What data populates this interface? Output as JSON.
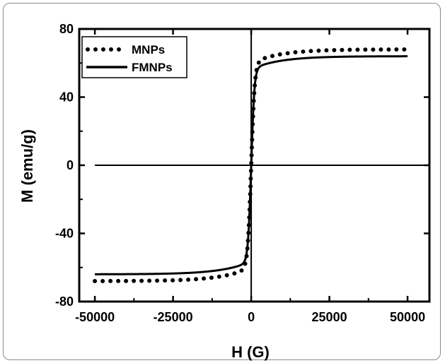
{
  "chart_data": {
    "type": "line",
    "xlabel": "H (G)",
    "ylabel": "M (emu/g)",
    "xlim": [
      -55000,
      57000
    ],
    "ylim": [
      -80,
      80
    ],
    "x_ticks": [
      "-50000",
      "-25000",
      "0",
      "25000",
      "50000"
    ],
    "y_ticks": [
      "80",
      "40",
      "0",
      "-40",
      "-80"
    ],
    "legend_position": "top-left",
    "grid": false,
    "series": [
      {
        "name": "MNPs",
        "style": "dotted",
        "color": "#000000",
        "Ms": 68,
        "H0": 1100,
        "x": [
          -50000,
          -45000,
          -40000,
          -35000,
          -30000,
          -25000,
          -20000,
          -15000,
          -10000,
          -8000,
          -6000,
          -4000,
          -3000,
          -2000,
          -1500,
          -1000,
          -500,
          0,
          500,
          1000,
          1500,
          2000,
          3000,
          4000,
          6000,
          8000,
          10000,
          15000,
          20000,
          25000,
          30000,
          35000,
          40000,
          45000,
          50000
        ],
        "y": [
          -68,
          -68,
          -67,
          -67,
          -67,
          -66,
          -66,
          -65,
          -63,
          -62,
          -60,
          -56,
          -53,
          -47,
          -42,
          -33,
          -21,
          0,
          21,
          33,
          42,
          47,
          53,
          56,
          60,
          62,
          63,
          65,
          66,
          66,
          67,
          67,
          67,
          68,
          68
        ]
      },
      {
        "name": "FMNPs",
        "style": "solid",
        "color": "#000000",
        "Ms": 64,
        "H0": 1000,
        "x": [
          -50000,
          -45000,
          -40000,
          -35000,
          -30000,
          -25000,
          -20000,
          -15000,
          -10000,
          -8000,
          -6000,
          -4000,
          -3000,
          -2000,
          -1500,
          -1000,
          -500,
          0,
          500,
          1000,
          1500,
          2000,
          3000,
          4000,
          6000,
          8000,
          10000,
          15000,
          20000,
          25000,
          30000,
          35000,
          40000,
          45000,
          50000
        ],
        "y": [
          -64,
          -64,
          -63,
          -63,
          -63,
          -62,
          -62,
          -61,
          -59,
          -58,
          -57,
          -53,
          -50,
          -45,
          -40,
          -32,
          -20,
          0,
          20,
          32,
          40,
          45,
          50,
          53,
          57,
          58,
          59,
          61,
          62,
          62,
          63,
          63,
          63,
          64,
          64
        ]
      }
    ]
  }
}
